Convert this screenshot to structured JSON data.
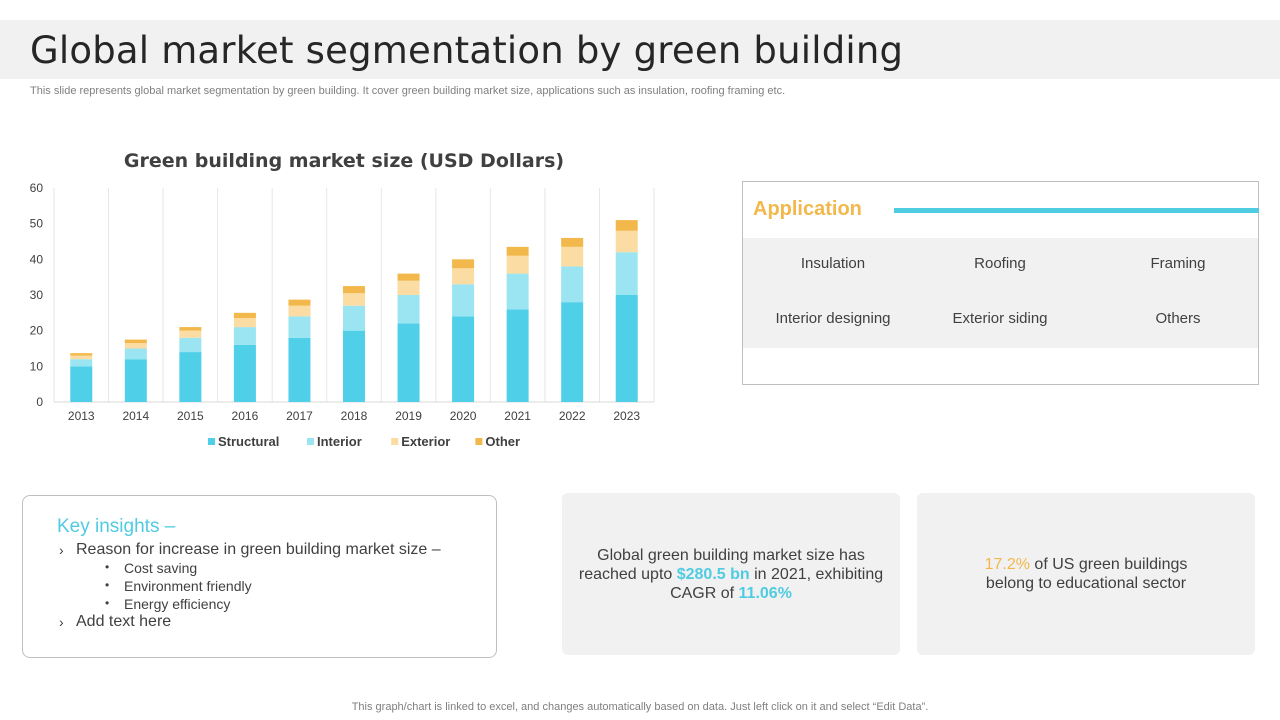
{
  "page": {
    "title": "Global market segmentation by green building",
    "subtitle": "This slide represents global market segmentation by green building. It cover green building market size, applications such as insulation, roofing framing etc.",
    "footnote": "This graph/chart is linked to excel,  and changes automatically based on data. Just left click on it and select “Edit Data”."
  },
  "chart_data": {
    "type": "bar",
    "stacked": true,
    "title": "Green building market size (USD Dollars)",
    "xlabel": "",
    "ylabel": "",
    "ylim": [
      0,
      60
    ],
    "yticks": [
      0,
      10,
      20,
      30,
      40,
      50,
      60
    ],
    "grid": "vertical",
    "legend_position": "bottom",
    "categories": [
      "2013",
      "2014",
      "2015",
      "2016",
      "2017",
      "2018",
      "2019",
      "2020",
      "2021",
      "2022",
      "2023"
    ],
    "series": [
      {
        "name": "Structural",
        "color": "#4fd0e8",
        "values": [
          10,
          12,
          14,
          16,
          18,
          20,
          22,
          24,
          26,
          28,
          30
        ]
      },
      {
        "name": "Interior",
        "color": "#9be4f1",
        "values": [
          2,
          3,
          4,
          5,
          6,
          7,
          8,
          9,
          10,
          10,
          12
        ]
      },
      {
        "name": "Exterior",
        "color": "#fbdca3",
        "values": [
          1,
          1.5,
          2,
          2.5,
          3,
          3.5,
          4,
          4.5,
          5,
          5.5,
          6
        ]
      },
      {
        "name": "Other",
        "color": "#f2b84b",
        "values": [
          0.7,
          1,
          1,
          1.5,
          1.7,
          2,
          2,
          2.5,
          2.5,
          2.5,
          3
        ]
      }
    ]
  },
  "application": {
    "title": "Application",
    "items": [
      "Insulation",
      "Roofing",
      "Framing",
      "Interior designing",
      "Exterior siding",
      "Others"
    ],
    "accent_color": "#f2b84b",
    "line_color": "#4fcbe2"
  },
  "insights": {
    "title": "Key insights –",
    "reason": "Reason for increase in green building market size –",
    "bullets": [
      "Cost saving",
      "Environment friendly",
      "Energy efficiency"
    ],
    "add_text": "Add text here"
  },
  "stats": {
    "card1_line1": "Global green building market size has",
    "card1_pre": "reached upto",
    "card1_value": "$280.5 bn",
    "card1_post": "in 2021, exhibiting",
    "card1_pre2": "CAGR of",
    "card1_cagr": "11.06%",
    "card2_pct": "17.2%",
    "card2_text1": "of US green buildings",
    "card2_text2": "belong to educational sector"
  }
}
